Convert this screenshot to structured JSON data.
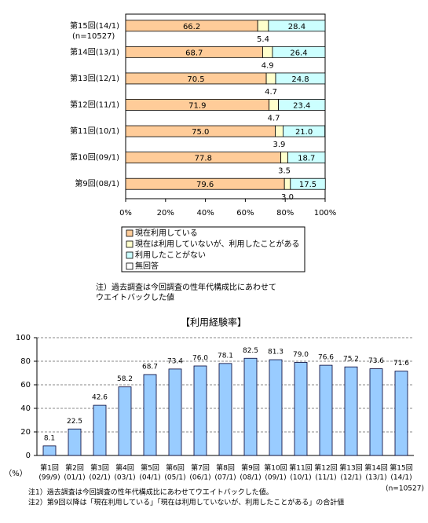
{
  "chart_data": [
    {
      "type": "stacked_hbar",
      "categories": [
        "第15回(14/1)",
        "第14回(13/1)",
        "第13回(12/1)",
        "第12回(11/1)",
        "第11回(10/1)",
        "第10回(09/1)",
        "第9回(08/1)"
      ],
      "annotation": "(n=10527)",
      "series": [
        {
          "name": "現在利用している",
          "color": "#ffcc99",
          "values": [
            66.2,
            68.7,
            70.5,
            71.9,
            75,
            77.8,
            79.6
          ],
          "value_labels": [
            "66.2",
            "68.7",
            "70.5",
            "71.9",
            "75.0",
            "77.8",
            "79.6"
          ]
        },
        {
          "name": "現在は利用していないが、利用したことがある",
          "color": "#ffffcc",
          "values": [
            5.4,
            4.9,
            4.7,
            4.7,
            3.9,
            3.5,
            3
          ],
          "value_labels": [
            "5.4",
            "4.9",
            "4.7",
            "4.7",
            "3.9",
            "3.5",
            "3.0"
          ]
        },
        {
          "name": "利用したことがない",
          "color": "#ccffff",
          "values": [
            28.4,
            26.4,
            24.8,
            23.4,
            21,
            18.7,
            17.5
          ],
          "value_labels": [
            "28.4",
            "26.4",
            "24.8",
            "23.4",
            "21.0",
            "18.7",
            "17.5"
          ]
        },
        {
          "name": "無回答",
          "color": "#ffffff",
          "values": [
            0,
            0,
            0,
            0,
            0.1,
            0,
            0
          ]
        }
      ],
      "xlim": [
        0,
        100
      ],
      "xticks": [
        {
          "value": 0,
          "label": "0%"
        },
        {
          "value": 20,
          "label": "20%"
        },
        {
          "value": 40,
          "label": "40%"
        },
        {
          "value": 60,
          "label": "60%"
        },
        {
          "value": 80,
          "label": "80%"
        },
        {
          "value": 100,
          "label": "100%"
        }
      ],
      "note": [
        "注）過去調査は今回調査の性年代構成比にあわせて",
        "ウエイトバックした値"
      ]
    },
    {
      "type": "bar",
      "title": "【利用経験率】",
      "categories": [
        [
          "第1回",
          "(99/9)"
        ],
        [
          "第2回",
          "(01/1)"
        ],
        [
          "第3回",
          "(02/1)"
        ],
        [
          "第4回",
          "(03/1)"
        ],
        [
          "第5回",
          "(04/1)"
        ],
        [
          "第6回",
          "(05/1)"
        ],
        [
          "第7回",
          "(06/1)"
        ],
        [
          "第8回",
          "(07/1)"
        ],
        [
          "第9回",
          "(08/1)"
        ],
        [
          "第10回",
          "(09/1)"
        ],
        [
          "第11回",
          "(10/1)"
        ],
        [
          "第12回",
          "(11/1)"
        ],
        [
          "第13回",
          "(12/1)"
        ],
        [
          "第14回",
          "(13/1)"
        ],
        [
          "第15回",
          "(14/1)"
        ]
      ],
      "values": [
        8.1,
        22.5,
        42.6,
        58.2,
        68.7,
        73.4,
        76,
        78.1,
        82.5,
        81.3,
        79,
        76.6,
        75.2,
        73.6,
        71.6
      ],
      "value_labels": [
        "8.1",
        "22.5",
        "42.6",
        "58.2",
        "68.7",
        "73.4",
        "76.0",
        "78.1",
        "82.5",
        "81.3",
        "79.0",
        "76.6",
        "75.2",
        "73.6",
        "71.6"
      ],
      "color": "#99ccff",
      "ylim": [
        0,
        100
      ],
      "yticks": [
        0,
        20,
        40,
        60,
        80,
        100
      ],
      "grid": true,
      "y_label": "（%）",
      "annotation": "(n=10527)",
      "note": [
        "注1）過去調査は今回調査の性年代構成比にあわせてウエイトバックした値。",
        "注2）第9回以降は「現在利用している」「現在は利用していないが、利用したことがある」の合計値"
      ]
    }
  ]
}
